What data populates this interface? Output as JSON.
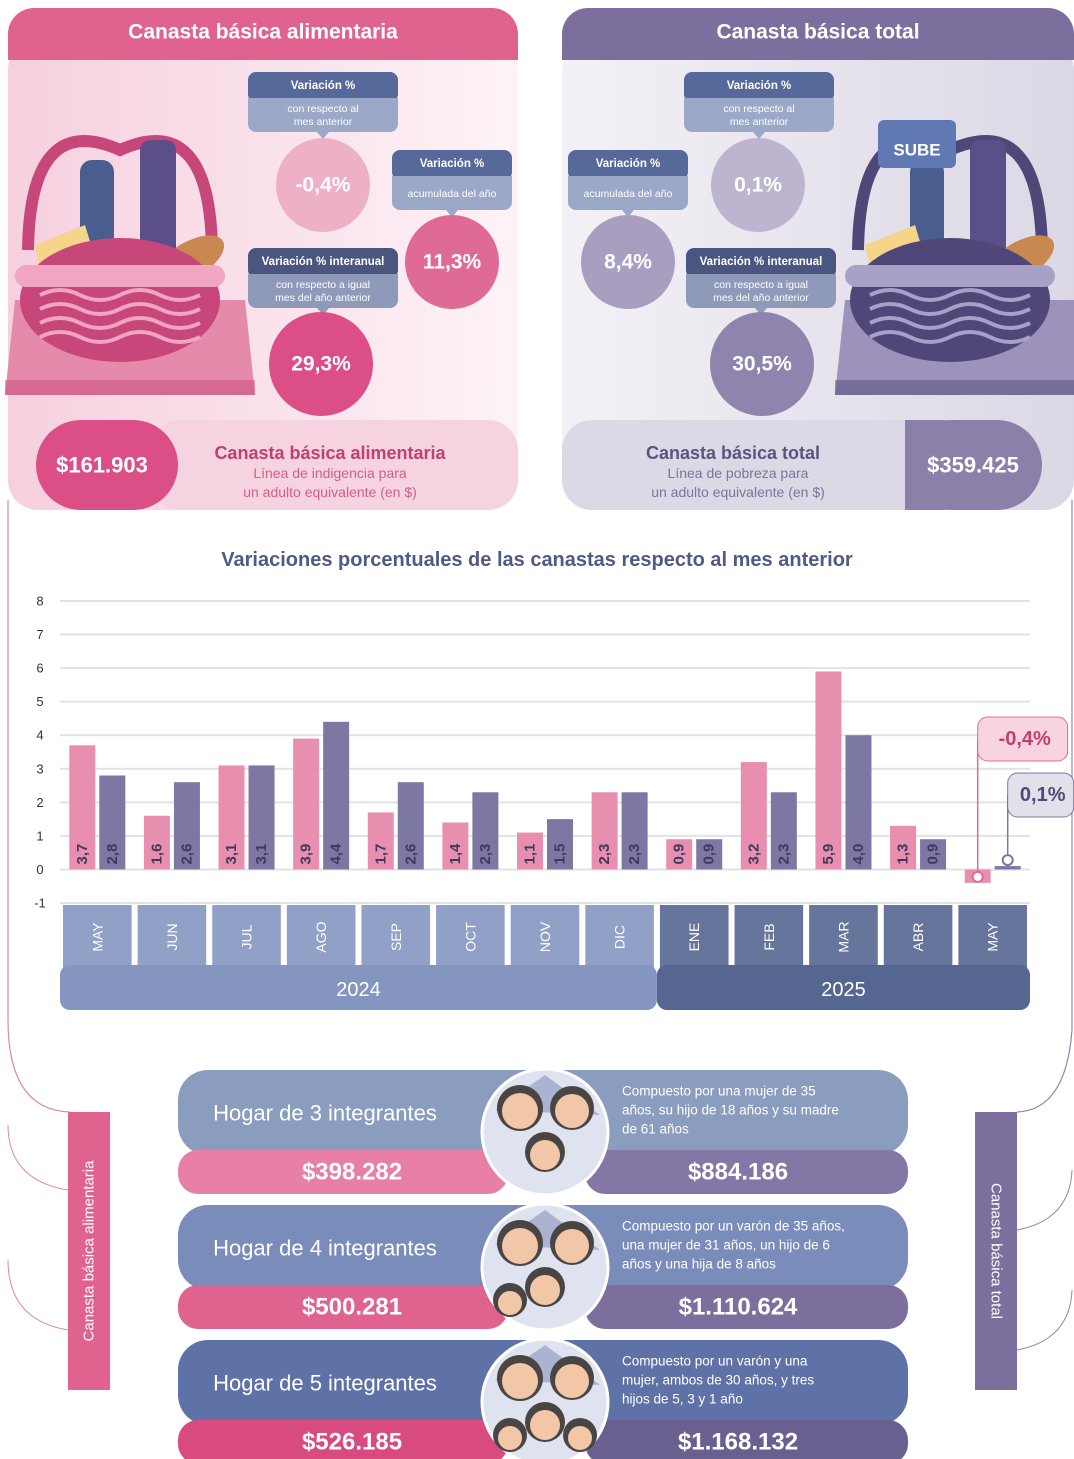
{
  "cba": {
    "title": "Canasta básica alimentaria",
    "monthly": {
      "label": "Variación %",
      "sub": [
        "con respecto al",
        "mes anterior"
      ],
      "value": "-0,4%"
    },
    "ytd": {
      "label": "Variación %",
      "sub": [
        "acumulada del año"
      ],
      "value": "11,3%"
    },
    "yoy": {
      "label": "Variación % interanual",
      "sub": [
        "con respecto a igual",
        "mes del año anterior"
      ],
      "value": "29,3%"
    },
    "amount": "$161.903",
    "name": "Canasta básica alimentaria",
    "desc": [
      "Línea de indigencia para",
      "un adulto equivalente (en $)"
    ]
  },
  "cbt": {
    "title": "Canasta básica total",
    "illustration_text": "SUBE",
    "monthly": {
      "label": "Variación %",
      "sub": [
        "con respecto al",
        "mes anterior"
      ],
      "value": "0,1%"
    },
    "ytd": {
      "label": "Variación %",
      "sub": [
        "acumulada del año"
      ],
      "value": "8,4%"
    },
    "yoy": {
      "label": "Variación % interanual",
      "sub": [
        "con respecto a igual",
        "mes del año anterior"
      ],
      "value": "30,5%"
    },
    "amount": "$359.425",
    "name": "Canasta básica total",
    "desc": [
      "Línea de pobreza para",
      "un adulto equivalente (en $)"
    ]
  },
  "chart_data": {
    "type": "bar",
    "title": "Variaciones porcentuales de las canastas respecto al mes anterior",
    "groups": [
      {
        "label": "2024",
        "color": "#8496c0",
        "categories": [
          "MAY",
          "JUN",
          "JUL",
          "AGO",
          "SEP",
          "OCT",
          "NOV",
          "DIC"
        ]
      },
      {
        "label": "2025",
        "color": "#556690",
        "categories": [
          "ENE",
          "FEB",
          "MAR",
          "ABR",
          "MAY"
        ]
      }
    ],
    "series": [
      {
        "color": "#e88fb0",
        "values": [
          3.7,
          1.6,
          3.1,
          3.9,
          1.7,
          1.4,
          1.1,
          2.3,
          0.9,
          3.2,
          5.9,
          1.3,
          -0.4
        ],
        "value_labels": [
          "3,7",
          "1,6",
          "3,1",
          "3,9",
          "1,7",
          "1,4",
          "1,1",
          "2,3",
          "0,9",
          "3,2",
          "5,9",
          "1,3",
          "-0,4%"
        ]
      },
      {
        "color": "#7d77a3",
        "values": [
          2.8,
          2.6,
          3.1,
          4.4,
          2.6,
          2.3,
          1.5,
          2.3,
          0.9,
          2.3,
          4.0,
          0.9,
          0.1
        ],
        "value_labels": [
          "2,8",
          "2,6",
          "3,1",
          "4,4",
          "2,6",
          "2,3",
          "1,5",
          "2,3",
          "0,9",
          "2,3",
          "4,0",
          "0,9",
          "0,1%"
        ]
      }
    ],
    "ylim": [
      -1,
      8
    ],
    "yticks": [
      -1,
      0,
      1,
      2,
      3,
      4,
      5,
      6,
      7,
      8
    ],
    "grid": true
  },
  "households": {
    "left_label": "Canasta básica alimentaria",
    "right_label": "Canasta básica total",
    "rows": [
      {
        "title": "Hogar de 3 integrantes",
        "desc": [
          "Compuesto por una mujer de 35",
          "años, su hijo de 18 años y su madre",
          "de 61 años"
        ],
        "cba": "$398.282",
        "cbt": "$884.186"
      },
      {
        "title": "Hogar de 4 integrantes",
        "desc": [
          "Compuesto por un varón de 35 años,",
          "una mujer de 31 años, un hijo de 6",
          "años y una hija de 8 años"
        ],
        "cba": "$500.281",
        "cbt": "$1.110.624"
      },
      {
        "title": "Hogar de 5 integrantes",
        "desc": [
          "Compuesto por un varón y una",
          "mujer, ambos de 30 años, y tres",
          "hijos de 5, 3 y 1 año"
        ],
        "cba": "$526.185",
        "cbt": "$1.168.132"
      }
    ]
  }
}
